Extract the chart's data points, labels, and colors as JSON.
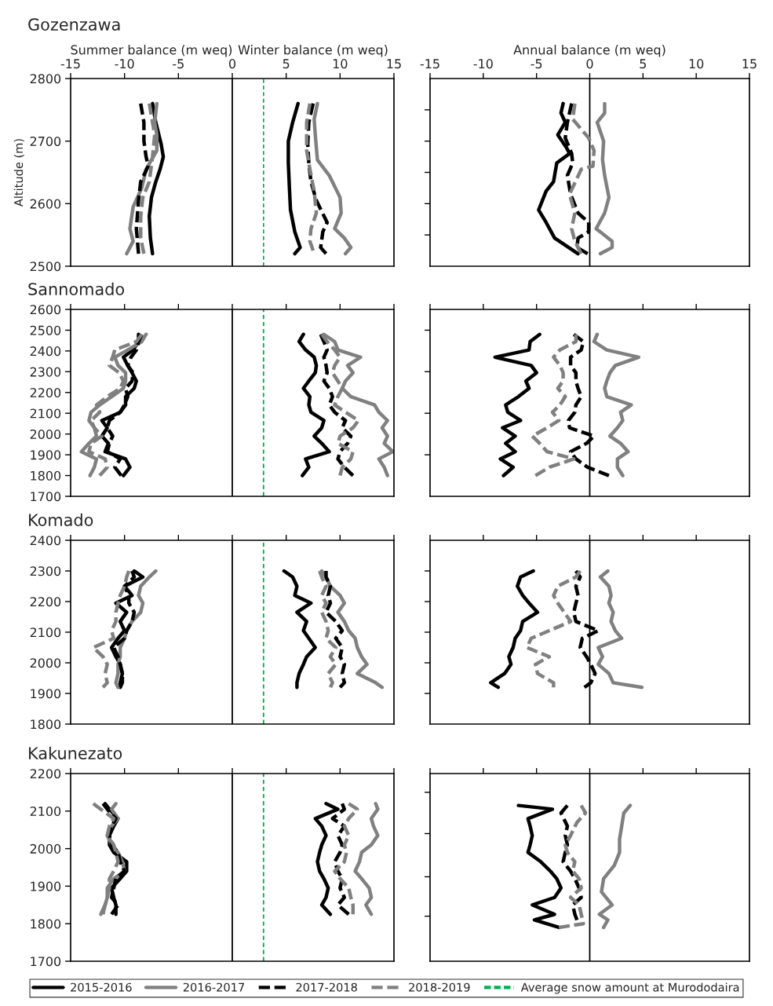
{
  "chart_data": [
    {
      "type": "line",
      "title": "Gozenzawa",
      "legend": "bottom",
      "xlabel": "Summer balance (m weq)",
      "ylabel": "Altitude (m)",
      "annotations": [
        "Winter balance (m weq)"
      ],
      "xlim": [
        -15,
        15
      ],
      "xticks": [
        -15,
        -10,
        -5,
        0,
        5,
        10,
        15
      ],
      "ylim": [
        2500,
        2800
      ],
      "yticks": [
        2500,
        2600,
        2700,
        2800
      ],
      "ref_lines": [
        {
          "axis": "x",
          "value": 0,
          "color": "#000000",
          "line_style": "solid"
        },
        {
          "axis": "x",
          "value": 2.9,
          "label": "Average snow amount at Murododaira",
          "color": "#00b050",
          "line_style": "dashed"
        }
      ],
      "series": [
        {
          "name": "2015-2016",
          "color": "#000000",
          "line_style": "solid",
          "x": [
            -7.4,
            -7.1,
            -6.6,
            -6.4,
            -6.7,
            -7.1,
            -7.5,
            -7.7,
            -7.6,
            -7.4
          ],
          "values": [
            2760,
            2730,
            2695,
            2675,
            2655,
            2635,
            2610,
            2580,
            2545,
            2520
          ]
        },
        {
          "name": "2016-2017",
          "color": "#808080",
          "line_style": "solid",
          "x": [
            -7.0,
            -7.2,
            -7.0,
            -7.0,
            -8.0,
            -8.4,
            -9.2,
            -9.5,
            -9.2,
            -9.8
          ],
          "values": [
            2760,
            2730,
            2710,
            2685,
            2655,
            2625,
            2595,
            2560,
            2540,
            2520
          ]
        },
        {
          "name": "2017-2018",
          "color": "#000000",
          "line_style": "dashed",
          "x": [
            -8.5,
            -8.2,
            -8.2,
            -8.0,
            -7.8,
            -8.5,
            -8.7,
            -8.9,
            -8.7
          ],
          "values": [
            2760,
            2730,
            2700,
            2675,
            2660,
            2635,
            2605,
            2560,
            2520
          ]
        },
        {
          "name": "2018-2019",
          "color": "#808080",
          "line_style": "dashed",
          "x": [
            -7.7,
            -7.4,
            -7.2,
            -7.4,
            -7.7,
            -8.3,
            -8.5,
            -8.5,
            -8.2
          ],
          "values": [
            2760,
            2730,
            2710,
            2675,
            2635,
            2610,
            2580,
            2545,
            2520
          ]
        },
        {
          "color": "#000000",
          "line_style": "solid",
          "x": [
            6.1,
            5.6,
            5.2,
            5.2,
            5.3,
            5.4,
            5.8,
            6.3,
            5.8
          ],
          "values": [
            2760,
            2730,
            2700,
            2665,
            2625,
            2590,
            2555,
            2530,
            2520
          ]
        },
        {
          "color": "#808080",
          "line_style": "solid",
          "x": [
            7.9,
            7.6,
            7.7,
            7.9,
            9.0,
            10.0,
            10.1,
            9.5,
            10.4,
            11.0,
            10.5
          ],
          "values": [
            2760,
            2735,
            2710,
            2670,
            2645,
            2610,
            2585,
            2560,
            2545,
            2530,
            2520
          ]
        },
        {
          "color": "#000000",
          "line_style": "dashed",
          "x": [
            7.5,
            7.1,
            7.0,
            7.1,
            7.3,
            7.8,
            8.8,
            8.4,
            8.2,
            8.7
          ],
          "values": [
            2760,
            2730,
            2695,
            2665,
            2635,
            2605,
            2570,
            2555,
            2530,
            2520
          ]
        },
        {
          "color": "#808080",
          "line_style": "dashed",
          "x": [
            7.2,
            6.9,
            6.9,
            7.2,
            7.6,
            7.8,
            7.3,
            7.2,
            7.5
          ],
          "values": [
            2760,
            2730,
            2685,
            2655,
            2620,
            2585,
            2560,
            2540,
            2525
          ]
        }
      ]
    },
    {
      "type": "line",
      "xlabel": "Annual balance (m weq)",
      "tick_labels": "x",
      "xlim": [
        -15,
        15
      ],
      "xticks": [
        -15,
        -10,
        -5,
        0,
        5,
        10,
        15
      ],
      "ylim": [
        2500,
        2800
      ],
      "yticks": [
        {
          "value": 2550,
          "label": null
        },
        {
          "value": 2600,
          "label": null
        },
        {
          "value": 2650,
          "label": null
        },
        {
          "value": 2700,
          "label": null
        },
        {
          "value": 2750,
          "label": null
        }
      ],
      "ref_lines": [
        {
          "axis": "x",
          "value": 0,
          "color": "#000000",
          "line_style": "solid"
        }
      ],
      "series": [
        {
          "color": "#000000",
          "line_style": "solid",
          "x": [
            -2.5,
            -2.7,
            -2.3,
            -3.0,
            -2.2,
            -1.9,
            -3.1,
            -3.4,
            -4.1,
            -4.8,
            -4.1,
            -3.3,
            -1.1
          ],
          "values": [
            2760,
            2745,
            2730,
            2710,
            2690,
            2680,
            2665,
            2635,
            2620,
            2590,
            2570,
            2545,
            2520
          ]
        },
        {
          "color": "#808080",
          "line_style": "solid",
          "x": [
            1.4,
            1.4,
            0.7,
            1.3,
            1.2,
            1.4,
            1.8,
            1.4,
            0.6,
            2.1,
            2.1,
            1.0
          ],
          "values": [
            2760,
            2745,
            2730,
            2700,
            2670,
            2645,
            2610,
            2585,
            2560,
            2540,
            2530,
            2520
          ]
        },
        {
          "color": "#000000",
          "line_style": "dashed",
          "x": [
            -1.7,
            -2.1,
            -2.3,
            -1.7,
            -1.6,
            -2.1,
            -1.8,
            -1.1,
            -0.1,
            -0.1,
            -1.1,
            -1.2,
            -0.2
          ],
          "values": [
            2760,
            2730,
            2705,
            2680,
            2665,
            2645,
            2615,
            2585,
            2570,
            2555,
            2545,
            2530,
            2520
          ]
        },
        {
          "color": "#808080",
          "line_style": "dashed",
          "x": [
            -1.4,
            -1.6,
            -0.1,
            0.4,
            0.3,
            -0.8,
            -1.9,
            -1.4,
            -1.7,
            -1.4,
            -0.8
          ],
          "values": [
            2760,
            2735,
            2705,
            2685,
            2660,
            2655,
            2615,
            2585,
            2560,
            2540,
            2520
          ]
        }
      ]
    },
    {
      "type": "line",
      "title": "Sannomado",
      "tick_labels": "y",
      "xlim": [
        -15,
        15
      ],
      "xticks": [
        -15,
        -10,
        -5,
        0,
        5,
        10,
        15
      ],
      "ylim": [
        1700,
        2600
      ],
      "yticks": [
        1700,
        1800,
        1900,
        2000,
        2100,
        2200,
        2300,
        2400,
        2500,
        2600
      ],
      "ref_lines": [
        {
          "axis": "x",
          "value": 0,
          "color": "#000000",
          "line_style": "solid"
        },
        {
          "axis": "x",
          "value": 2.9,
          "color": "#00b050",
          "line_style": "dashed"
        }
      ],
      "series": [
        {
          "color": "#000000",
          "line_style": "solid",
          "x": [
            -8.7,
            -8.7,
            -9.2,
            -10.1,
            -9.7,
            -9.3,
            -8.9,
            -9.1,
            -9.9,
            -9.9,
            -10.4,
            -12.1,
            -11.6,
            -12.1,
            -11.5,
            -11.8,
            -9.9,
            -9.5,
            -10.1
          ],
          "values": [
            2480,
            2445,
            2405,
            2370,
            2330,
            2295,
            2255,
            2220,
            2180,
            2140,
            2105,
            2065,
            2030,
            1990,
            1955,
            1915,
            1880,
            1840,
            1800
          ]
        },
        {
          "color": "#808080",
          "line_style": "solid",
          "x": [
            -8.0,
            -8.4,
            -9.7,
            -10.9,
            -10.6,
            -9.9,
            -9.9,
            -10.1,
            -11.2,
            -12.3,
            -13.1,
            -13.3,
            -12.8,
            -12.6,
            -13.3,
            -14.0,
            -12.6,
            -12.8,
            -13.2
          ],
          "values": [
            2480,
            2445,
            2405,
            2370,
            2330,
            2295,
            2255,
            2220,
            2180,
            2140,
            2105,
            2065,
            2030,
            1990,
            1955,
            1915,
            1880,
            1840,
            1800
          ]
        },
        {
          "color": "#000000",
          "line_style": "dashed",
          "x": [
            -8.4,
            -8.7,
            -8.9,
            -9.4,
            -9.7,
            -9.2,
            -9.3,
            -9.9,
            -9.7,
            -10.0,
            -10.4,
            -11.4,
            -11.6,
            -11.1,
            -11.4,
            -11.6,
            -10.4,
            -10.9,
            -10.3
          ],
          "values": [
            2480,
            2445,
            2405,
            2370,
            2330,
            2295,
            2255,
            2220,
            2180,
            2140,
            2105,
            2065,
            2030,
            1990,
            1955,
            1915,
            1880,
            1840,
            1800
          ]
        },
        {
          "color": "#808080",
          "line_style": "dashed",
          "x": [
            -8.4,
            -8.9,
            -10.9,
            -11.1,
            -11.4,
            -10.5,
            -10.1,
            -10.4,
            -11.6,
            -12.6,
            -12.3,
            -13.1,
            -12.8,
            -12.1,
            -13.1,
            -13.3,
            -11.8,
            -11.6,
            -12.3
          ],
          "values": [
            2480,
            2445,
            2405,
            2370,
            2330,
            2295,
            2255,
            2220,
            2180,
            2140,
            2105,
            2065,
            2030,
            1990,
            1955,
            1915,
            1880,
            1840,
            1800
          ]
        },
        {
          "color": "#000000",
          "line_style": "solid",
          "x": [
            6.6,
            6.2,
            6.8,
            7.6,
            7.8,
            7.7,
            7.1,
            6.6,
            7.2,
            7.1,
            7.3,
            8.5,
            8.3,
            7.6,
            8.3,
            9.0,
            6.8,
            7.1,
            6.5
          ],
          "values": [
            2480,
            2445,
            2405,
            2370,
            2330,
            2295,
            2255,
            2220,
            2180,
            2140,
            2105,
            2065,
            2030,
            1990,
            1955,
            1915,
            1880,
            1840,
            1800
          ]
        },
        {
          "color": "#808080",
          "line_style": "solid",
          "x": [
            8.5,
            9.5,
            9.8,
            11.9,
            10.7,
            11.2,
            10.5,
            10.2,
            11.0,
            13.2,
            13.6,
            14.4,
            13.9,
            14.4,
            14.1,
            14.9,
            13.6,
            14.1,
            14.4
          ],
          "values": [
            2480,
            2445,
            2405,
            2370,
            2330,
            2295,
            2255,
            2220,
            2180,
            2140,
            2105,
            2065,
            2030,
            1990,
            1955,
            1915,
            1880,
            1840,
            1800
          ]
        },
        {
          "color": "#000000",
          "line_style": "dashed",
          "x": [
            8.2,
            8.5,
            8.8,
            8.5,
            8.7,
            8.8,
            8.5,
            9.0,
            9.3,
            9.0,
            9.5,
            10.5,
            10.2,
            11.0,
            10.7,
            10.0,
            9.8,
            10.4,
            11.2
          ],
          "values": [
            2480,
            2445,
            2405,
            2370,
            2330,
            2295,
            2255,
            2220,
            2180,
            2140,
            2105,
            2065,
            2030,
            1990,
            1955,
            1915,
            1880,
            1840,
            1800
          ]
        },
        {
          "color": "#808080",
          "line_style": "dashed",
          "x": [
            8.3,
            8.8,
            9.5,
            10.0,
            9.5,
            9.3,
            9.8,
            10.2,
            9.8,
            9.5,
            10.5,
            11.7,
            11.2,
            10.0,
            9.8,
            11.2,
            11.0,
            10.2,
            10.0
          ],
          "values": [
            2480,
            2445,
            2405,
            2370,
            2330,
            2295,
            2255,
            2220,
            2180,
            2140,
            2105,
            2065,
            2030,
            1990,
            1955,
            1915,
            1880,
            1840,
            1800
          ]
        }
      ]
    },
    {
      "type": "line",
      "tick_labels": false,
      "xlim": [
        -15,
        15
      ],
      "xticks": [
        -15,
        -10,
        -5,
        0,
        5,
        10,
        15
      ],
      "ylim": [
        1700,
        2600
      ],
      "yticks": [
        {
          "value": 1900,
          "label": null
        },
        {
          "value": 2100,
          "label": null
        },
        {
          "value": 2300,
          "label": null
        },
        {
          "value": 2500,
          "label": null
        }
      ],
      "ref_lines": [
        {
          "axis": "x",
          "value": 0,
          "color": "#000000",
          "line_style": "solid"
        }
      ],
      "series": [
        {
          "color": "#000000",
          "line_style": "solid",
          "x": [
            -4.7,
            -5.6,
            -5.7,
            -8.9,
            -5.5,
            -5.0,
            -6.0,
            -5.7,
            -6.7,
            -7.9,
            -7.7,
            -6.5,
            -8.2,
            -7.0,
            -7.9,
            -7.0,
            -8.4,
            -7.2,
            -8.1
          ],
          "values": [
            2480,
            2445,
            2405,
            2370,
            2330,
            2295,
            2255,
            2220,
            2180,
            2140,
            2105,
            2065,
            2030,
            1990,
            1955,
            1915,
            1880,
            1840,
            1800
          ]
        },
        {
          "color": "#808080",
          "line_style": "solid",
          "x": [
            0.7,
            0.4,
            1.6,
            4.6,
            2.4,
            1.9,
            1.6,
            1.4,
            1.6,
            3.9,
            2.9,
            3.1,
            2.6,
            1.9,
            2.9,
            3.6,
            2.6,
            2.6,
            3.1
          ],
          "values": [
            2480,
            2445,
            2405,
            2370,
            2330,
            2295,
            2255,
            2220,
            2180,
            2140,
            2105,
            2065,
            2030,
            1990,
            1955,
            1915,
            1880,
            1840,
            1800
          ]
        },
        {
          "color": "#000000",
          "line_style": "dashed",
          "x": [
            -1.5,
            -0.6,
            -0.8,
            -1.8,
            -1.8,
            -1.3,
            -1.3,
            -1.1,
            -0.8,
            -1.3,
            -1.4,
            -2.0,
            -1.9,
            0.4,
            -0.3,
            -1.8,
            -1.3,
            -0.2,
            1.8
          ],
          "values": [
            2480,
            2445,
            2405,
            2370,
            2330,
            2295,
            2255,
            2220,
            2180,
            2140,
            2105,
            2065,
            2030,
            1990,
            1955,
            1915,
            1880,
            1840,
            1800
          ]
        },
        {
          "color": "#808080",
          "line_style": "dashed",
          "x": [
            -1.3,
            -1.3,
            -2.8,
            -3.4,
            -2.8,
            -2.5,
            -2.5,
            -3.0,
            -2.3,
            -2.8,
            -3.5,
            -2.9,
            -4.0,
            -5.4,
            -4.7,
            -4.0,
            -1.5,
            -3.8,
            -5.1
          ],
          "values": [
            2480,
            2445,
            2405,
            2370,
            2330,
            2295,
            2255,
            2220,
            2180,
            2140,
            2105,
            2065,
            2030,
            1990,
            1955,
            1915,
            1880,
            1840,
            1800
          ]
        }
      ]
    },
    {
      "type": "line",
      "title": "Komado",
      "tick_labels": "y",
      "xlim": [
        -15,
        15
      ],
      "xticks": [
        -15,
        -10,
        -5,
        0,
        5,
        10,
        15
      ],
      "ylim": [
        1800,
        2400
      ],
      "yticks": [
        1800,
        1900,
        2000,
        2100,
        2200,
        2300,
        2400
      ],
      "ref_lines": [
        {
          "axis": "x",
          "value": 0,
          "color": "#000000",
          "line_style": "solid"
        },
        {
          "axis": "x",
          "value": 2.9,
          "color": "#00b050",
          "line_style": "dashed"
        }
      ],
      "series": [
        {
          "color": "#000000",
          "line_style": "solid",
          "x": [
            -9.1,
            -8.3,
            -10.0,
            -9.3,
            -10.8,
            -9.8,
            -10.4,
            -10.0,
            -10.6,
            -11.2,
            -10.8,
            -10.4,
            -10.2,
            -10.4,
            -10.4
          ],
          "values": [
            2300,
            2280,
            2250,
            2220,
            2195,
            2165,
            2135,
            2105,
            2080,
            2050,
            2020,
            1995,
            1965,
            1935,
            1920
          ]
        },
        {
          "color": "#808080",
          "line_style": "solid",
          "x": [
            -7.1,
            -7.7,
            -8.5,
            -8.7,
            -8.3,
            -8.5,
            -9.3,
            -9.8,
            -10.0,
            -10.4,
            -10.4,
            -10.6,
            -10.6,
            -10.8,
            -10.6
          ],
          "values": [
            2300,
            2280,
            2250,
            2220,
            2195,
            2165,
            2135,
            2105,
            2080,
            2050,
            2020,
            1995,
            1965,
            1935,
            1920
          ]
        },
        {
          "color": "#000000",
          "line_style": "dashed",
          "x": [
            -9.3,
            -9.1,
            -10.0,
            -9.6,
            -9.6,
            -9.1,
            -9.3,
            -9.8,
            -10.0,
            -11.0,
            -10.6,
            -10.4,
            -10.2,
            -10.2,
            -10.4
          ],
          "values": [
            2300,
            2280,
            2250,
            2220,
            2195,
            2165,
            2135,
            2105,
            2080,
            2050,
            2020,
            1995,
            1965,
            1935,
            1920
          ]
        },
        {
          "color": "#808080",
          "line_style": "dashed",
          "x": [
            -9.6,
            -9.8,
            -10.0,
            -10.4,
            -10.6,
            -10.8,
            -10.8,
            -11.2,
            -11.0,
            -12.9,
            -12.0,
            -11.6,
            -11.8,
            -11.6,
            -12.0
          ],
          "values": [
            2300,
            2280,
            2250,
            2220,
            2195,
            2165,
            2135,
            2105,
            2080,
            2050,
            2020,
            1995,
            1965,
            1935,
            1920
          ]
        },
        {
          "color": "#000000",
          "line_style": "solid",
          "x": [
            4.8,
            5.6,
            6.0,
            5.8,
            7.3,
            6.0,
            6.9,
            6.6,
            7.1,
            7.7,
            6.9,
            6.6,
            6.2,
            6.0,
            6.0
          ],
          "values": [
            2300,
            2280,
            2250,
            2220,
            2195,
            2165,
            2135,
            2105,
            2080,
            2050,
            2020,
            1995,
            1965,
            1935,
            1920
          ]
        },
        {
          "color": "#808080",
          "line_style": "solid",
          "x": [
            8.3,
            8.7,
            9.1,
            10.0,
            10.4,
            9.8,
            10.4,
            10.8,
            11.4,
            11.6,
            12.0,
            12.5,
            11.6,
            13.3,
            13.9
          ],
          "values": [
            2300,
            2280,
            2250,
            2220,
            2195,
            2165,
            2135,
            2105,
            2080,
            2050,
            2020,
            1995,
            1965,
            1935,
            1920
          ]
        },
        {
          "color": "#000000",
          "line_style": "dashed",
          "x": [
            8.7,
            8.7,
            9.1,
            8.9,
            9.1,
            8.7,
            9.6,
            10.2,
            9.6,
            10.2,
            10.0,
            10.4,
            10.2,
            10.4,
            10.0
          ],
          "values": [
            2300,
            2280,
            2250,
            2220,
            2195,
            2165,
            2135,
            2105,
            2080,
            2050,
            2020,
            1995,
            1965,
            1935,
            1920
          ]
        },
        {
          "color": "#808080",
          "line_style": "dashed",
          "x": [
            8.1,
            8.3,
            8.7,
            8.3,
            8.7,
            8.3,
            8.7,
            8.9,
            8.7,
            9.6,
            9.1,
            9.6,
            8.9,
            9.3,
            9.1
          ],
          "values": [
            2300,
            2280,
            2250,
            2220,
            2195,
            2165,
            2135,
            2105,
            2080,
            2050,
            2020,
            1995,
            1965,
            1935,
            1920
          ]
        }
      ]
    },
    {
      "type": "line",
      "tick_labels": false,
      "xlim": [
        -15,
        15
      ],
      "xticks": [
        -15,
        -10,
        -5,
        0,
        5,
        10,
        15
      ],
      "ylim": [
        1800,
        2400
      ],
      "yticks": [
        {
          "value": 1900,
          "label": null
        },
        {
          "value": 2000,
          "label": null
        },
        {
          "value": 2100,
          "label": null
        },
        {
          "value": 2200,
          "label": null
        },
        {
          "value": 2300,
          "label": null
        }
      ],
      "ref_lines": [
        {
          "axis": "x",
          "value": 0,
          "color": "#000000",
          "line_style": "solid"
        }
      ],
      "series": [
        {
          "color": "#000000",
          "line_style": "solid",
          "x": [
            -5.3,
            -6.5,
            -6.8,
            -6.3,
            -5.7,
            -4.9,
            -6.3,
            -6.5,
            -7.0,
            -7.2,
            -7.6,
            -7.4,
            -8.0,
            -9.3,
            -8.6
          ],
          "values": [
            2300,
            2280,
            2250,
            2220,
            2195,
            2165,
            2135,
            2105,
            2080,
            2050,
            2020,
            1995,
            1965,
            1935,
            1920
          ]
        },
        {
          "color": "#808080",
          "line_style": "solid",
          "x": [
            1.7,
            1.0,
            1.8,
            2.0,
            1.8,
            2.2,
            2.0,
            2.4,
            3.0,
            0.8,
            1.2,
            0.8,
            1.8,
            2.2,
            4.9
          ],
          "values": [
            2300,
            2280,
            2250,
            2220,
            2195,
            2165,
            2135,
            2105,
            2080,
            2050,
            2020,
            1995,
            1965,
            1935,
            1920
          ]
        },
        {
          "color": "#000000",
          "line_style": "dashed",
          "x": [
            -1.3,
            -0.9,
            -1.3,
            -1.1,
            -1.3,
            -1.5,
            -1.3,
            0.8,
            -0.7,
            -0.9,
            -0.3,
            0.1,
            0.5,
            0.1,
            -0.5
          ],
          "values": [
            2300,
            2280,
            2250,
            2220,
            2195,
            2165,
            2135,
            2105,
            2080,
            2050,
            2020,
            1995,
            1965,
            1935,
            1920
          ]
        },
        {
          "color": "#808080",
          "line_style": "dashed",
          "x": [
            -0.9,
            -1.3,
            -3.0,
            -3.4,
            -3.0,
            -2.4,
            -1.8,
            -3.8,
            -5.5,
            -5.9,
            -3.8,
            -5.1,
            -4.9,
            -3.4,
            -3.4
          ],
          "values": [
            2300,
            2280,
            2250,
            2220,
            2195,
            2165,
            2135,
            2105,
            2080,
            2050,
            2020,
            1995,
            1965,
            1935,
            1920
          ]
        }
      ]
    },
    {
      "type": "line",
      "title": "Kakunezato",
      "tick_labels": "y",
      "xlim": [
        -15,
        15
      ],
      "xticks": [
        -15,
        -10,
        -5,
        0,
        5,
        10,
        15
      ],
      "ylim": [
        1700,
        2200
      ],
      "yticks": [
        1700,
        1800,
        1900,
        2000,
        2100,
        2200
      ],
      "ref_lines": [
        {
          "axis": "x",
          "value": 0,
          "color": "#000000",
          "line_style": "solid"
        },
        {
          "axis": "x",
          "value": 2.9,
          "color": "#00b050",
          "line_style": "dashed"
        }
      ],
      "series": [
        {
          "color": "#000000",
          "line_style": "solid",
          "x": [
            -11.8,
            -11.4,
            -10.6,
            -11.0,
            -11.4,
            -11.4,
            -11.0,
            -9.8,
            -9.8,
            -10.4,
            -11.2,
            -11.0,
            -10.8,
            -10.8
          ],
          "values": [
            2120,
            2105,
            2080,
            2060,
            2035,
            2010,
            1990,
            1965,
            1940,
            1920,
            1895,
            1870,
            1850,
            1825
          ]
        },
        {
          "color": "#808080",
          "line_style": "solid",
          "x": [
            -10.8,
            -11.2,
            -10.6,
            -11.2,
            -11.6,
            -11.2,
            -10.6,
            -10.2,
            -10.0,
            -11.0,
            -11.6,
            -11.6,
            -11.8,
            -12.2
          ],
          "values": [
            2120,
            2105,
            2080,
            2060,
            2035,
            2010,
            1990,
            1965,
            1940,
            1920,
            1895,
            1870,
            1850,
            1825
          ]
        },
        {
          "color": "#000000",
          "line_style": "dashed",
          "x": [
            -12.0,
            -11.6,
            -10.8,
            -11.2,
            -11.4,
            -11.2,
            -10.6,
            -10.4,
            -10.0,
            -10.8,
            -11.0,
            -11.2,
            -10.6,
            -11.2
          ],
          "values": [
            2120,
            2105,
            2080,
            2060,
            2035,
            2010,
            1990,
            1965,
            1940,
            1920,
            1895,
            1870,
            1850,
            1825
          ]
        },
        {
          "color": "#808080",
          "line_style": "dashed",
          "x": [
            -12.9,
            -12.2,
            -11.0,
            -11.4,
            -11.6,
            -11.0,
            -10.8,
            -10.6,
            -11.0,
            -11.4,
            -11.4,
            -11.6,
            -11.8,
            -12.0
          ],
          "values": [
            2120,
            2105,
            2080,
            2060,
            2035,
            2010,
            1990,
            1965,
            1940,
            1920,
            1895,
            1870,
            1850,
            1825
          ]
        },
        {
          "color": "#000000",
          "line_style": "solid",
          "x": [
            8.7,
            9.8,
            7.7,
            8.3,
            8.7,
            8.3,
            8.1,
            7.9,
            8.1,
            8.5,
            8.9,
            8.7,
            8.3,
            9.1
          ],
          "values": [
            2120,
            2105,
            2080,
            2060,
            2035,
            2010,
            1990,
            1965,
            1940,
            1920,
            1895,
            1870,
            1850,
            1825
          ]
        },
        {
          "color": "#808080",
          "line_style": "solid",
          "x": [
            13.3,
            13.5,
            12.9,
            13.1,
            13.5,
            12.9,
            12.0,
            11.8,
            11.4,
            12.0,
            12.7,
            12.9,
            12.4,
            12.9
          ],
          "values": [
            2120,
            2105,
            2080,
            2060,
            2035,
            2010,
            1990,
            1965,
            1940,
            1920,
            1895,
            1870,
            1850,
            1825
          ]
        },
        {
          "color": "#000000",
          "line_style": "dashed",
          "x": [
            10.2,
            10.4,
            9.3,
            10.4,
            9.8,
            10.2,
            10.0,
            9.5,
            9.8,
            10.2,
            10.0,
            10.4,
            9.8,
            10.8
          ],
          "values": [
            2120,
            2105,
            2080,
            2060,
            2035,
            2010,
            1990,
            1965,
            1940,
            1920,
            1895,
            1870,
            1850,
            1825
          ]
        },
        {
          "color": "#808080",
          "line_style": "dashed",
          "x": [
            10.8,
            11.6,
            10.8,
            10.4,
            10.8,
            10.4,
            10.6,
            10.4,
            9.5,
            10.0,
            10.8,
            11.0,
            11.2,
            11.2
          ],
          "values": [
            2120,
            2105,
            2080,
            2060,
            2035,
            2010,
            1990,
            1965,
            1940,
            1920,
            1895,
            1870,
            1850,
            1825
          ]
        }
      ]
    },
    {
      "type": "line",
      "tick_labels": false,
      "xlim": [
        -15,
        15
      ],
      "xticks": [
        -15,
        -10,
        -5,
        0,
        5,
        10,
        15
      ],
      "ylim": [
        1700,
        2200
      ],
      "yticks": [
        {
          "value": 1820,
          "label": null
        },
        {
          "value": 1925,
          "label": null
        },
        {
          "value": 2040,
          "label": null
        },
        {
          "value": 2150,
          "label": null
        }
      ],
      "ref_lines": [
        {
          "axis": "x",
          "value": 0,
          "color": "#000000",
          "line_style": "solid"
        }
      ],
      "series": [
        {
          "color": "#000000",
          "line_style": "solid",
          "x": [
            -6.7,
            -3.5,
            -5.8,
            -5.6,
            -5.4,
            -5.6,
            -5.8,
            -4.6,
            -3.7,
            -3.1,
            -2.7,
            -3.3,
            -5.4,
            -3.3,
            -5.2,
            -2.9
          ],
          "values": [
            2115,
            2105,
            2080,
            2060,
            2035,
            2010,
            1990,
            1965,
            1940,
            1920,
            1895,
            1870,
            1850,
            1825,
            1810,
            1790
          ]
        },
        {
          "color": "#808080",
          "line_style": "solid",
          "x": [
            3.8,
            3.2,
            3.0,
            2.8,
            2.8,
            2.3,
            1.3,
            1.1,
            2.1,
            0.9,
            1.7,
            1.3
          ],
          "values": [
            2115,
            2095,
            2060,
            2025,
            1990,
            1955,
            1920,
            1885,
            1850,
            1825,
            1810,
            1790
          ]
        },
        {
          "color": "#000000",
          "line_style": "dashed",
          "x": [
            -2.1,
            -2.7,
            -2.1,
            -2.3,
            -2.1,
            -2.3,
            -2.5,
            -1.8,
            -1.4,
            -1.0,
            -0.8,
            -1.6,
            -1.4,
            -1.2
          ],
          "values": [
            2115,
            2095,
            2060,
            2035,
            2010,
            1990,
            1965,
            1940,
            1920,
            1895,
            1870,
            1850,
            1825,
            1810
          ]
        },
        {
          "color": "#808080",
          "line_style": "dashed",
          "x": [
            -0.8,
            -0.4,
            -1.2,
            -1.8,
            -2.3,
            -2.1,
            -1.4,
            -1.6,
            -1.0,
            -0.8,
            -1.8,
            -1.0,
            -0.8,
            -0.6,
            -2.9
          ],
          "values": [
            2115,
            2095,
            2070,
            2035,
            2010,
            1990,
            1965,
            1940,
            1920,
            1895,
            1870,
            1850,
            1825,
            1800,
            1790
          ]
        }
      ]
    }
  ]
}
